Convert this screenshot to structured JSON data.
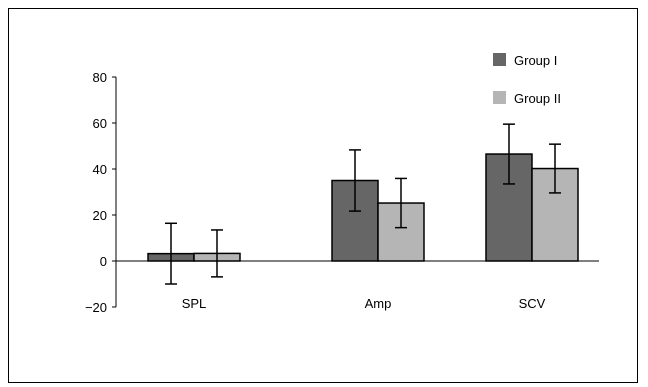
{
  "chart_data": {
    "type": "bar",
    "title": "",
    "xlabel": "",
    "ylabel": "",
    "categories": [
      "SPL",
      "Amp",
      "SCV"
    ],
    "series": [
      {
        "name": "Group I",
        "values": [
          3.2,
          35,
          46.5
        ],
        "errors": [
          13.2,
          13.3,
          13
        ],
        "color": "#666666"
      },
      {
        "name": "Group II",
        "values": [
          3.3,
          25.2,
          40.2
        ],
        "errors": [
          10.2,
          10.7,
          10.6
        ],
        "color": "#b5b5b5"
      }
    ],
    "ylim": [
      -20,
      80
    ],
    "yticks": [
      "80",
      "60",
      "40",
      "20",
      "0",
      "−20"
    ],
    "ytick_values": [
      80,
      60,
      40,
      20,
      0,
      -20
    ],
    "grid": false,
    "legend_position": "top-right",
    "error_bars": true
  }
}
